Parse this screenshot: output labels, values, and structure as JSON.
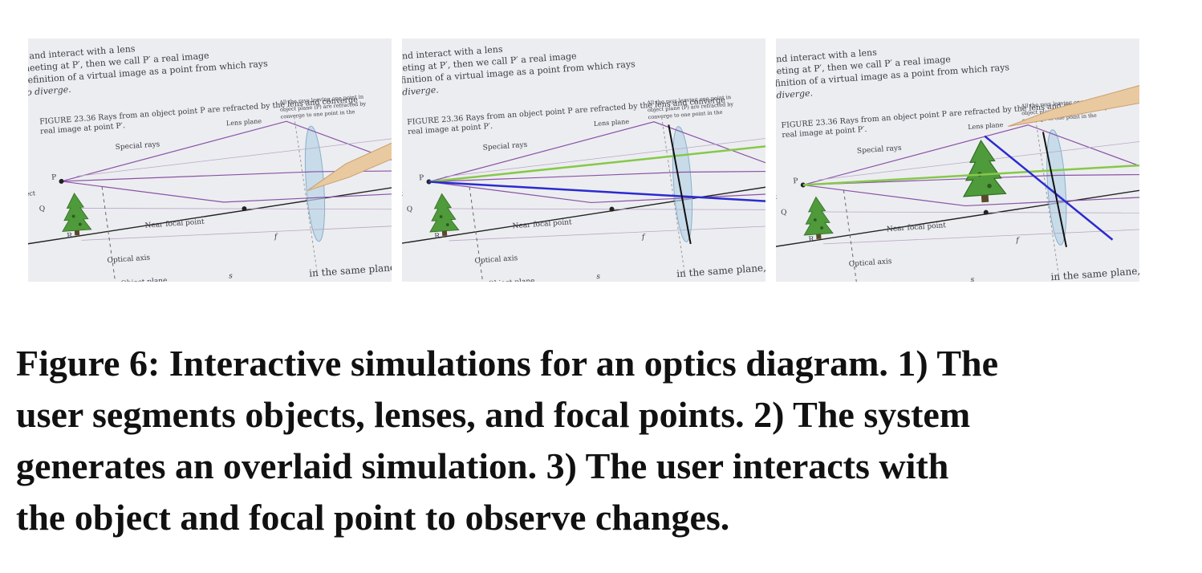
{
  "photo_text": {
    "book_lines": [
      "P and interact with a lens",
      "meeting at P′, then we call P′ a real image",
      "definition of a virtual image as a point from which rays",
      "to diverge."
    ],
    "figure_caption": [
      "FIGURE 23.36 Rays from an object point P are refracted by the lens and converge",
      "real image at point P′."
    ],
    "annotation": [
      "All the rays leaving one point in",
      "object plane (P) are refracted by",
      "converge to one point in the"
    ],
    "labels": {
      "special_rays": "Special rays",
      "lens_plane": "Lens plane",
      "near_focal": "Near focal point",
      "optical_axis": "Optical axis",
      "object_plane": "Object plane",
      "object": "Object",
      "p": "P",
      "q": "Q",
      "r": "R",
      "f": "f",
      "s": "s"
    },
    "footer": "in the same plane, and R in"
  },
  "caption_lines": [
    "Figure 6: Interactive simulations for an optics diagram. 1) The",
    "user segments objects, lenses, and focal points. 2) The system",
    "generates an overlaid simulation. 3) The user interacts with",
    "the object and focal point to observe changes."
  ]
}
